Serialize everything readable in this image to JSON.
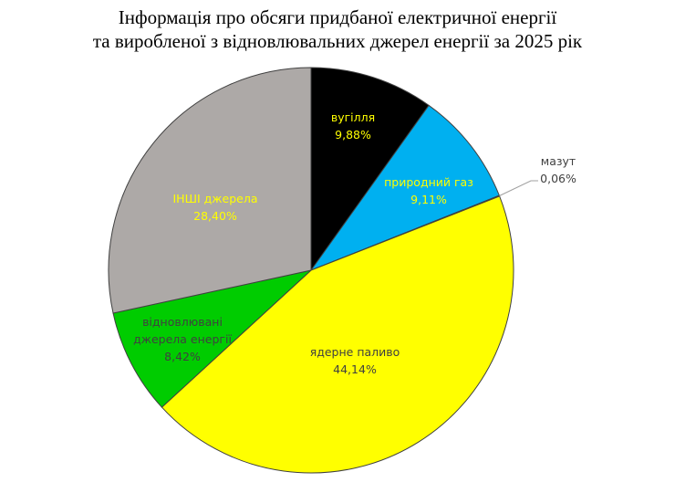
{
  "chart_data": {
    "type": "pie",
    "title_lines": [
      "Інформація про обсяги придбаної електричної енергії",
      "та виробленої з відновлювальних джерел енергії за 2025 рік"
    ],
    "start_angle": "12 o'clock",
    "direction": "clockwise",
    "slices": [
      {
        "name_lines": [
          "вугілля"
        ],
        "value": 9.88,
        "label": "9,88%",
        "color": "#000000",
        "text_color": "#FFFF00"
      },
      {
        "name_lines": [
          "природний газ"
        ],
        "value": 9.11,
        "label": "9,11%",
        "color": "#00B0F0",
        "text_color": "#FFFF00"
      },
      {
        "name_lines": [
          "мазут"
        ],
        "value": 0.06,
        "label": "0,06%",
        "color": "#7F7F7F",
        "text_color": "#404040"
      },
      {
        "name_lines": [
          "ядерне паливо"
        ],
        "value": 44.14,
        "label": "44,14%",
        "color": "#FFFF00",
        "text_color": "#404040"
      },
      {
        "name_lines": [
          "відновлювані",
          "джерела енергії"
        ],
        "value": 8.42,
        "label": "8,42%",
        "color": "#00CC00",
        "text_color": "#404040"
      },
      {
        "name_lines": [
          "ІНШІ джерела"
        ],
        "value": 28.4,
        "label": "28,40%",
        "color": "#ADA9A7",
        "text_color": "#FFFF00"
      }
    ]
  }
}
